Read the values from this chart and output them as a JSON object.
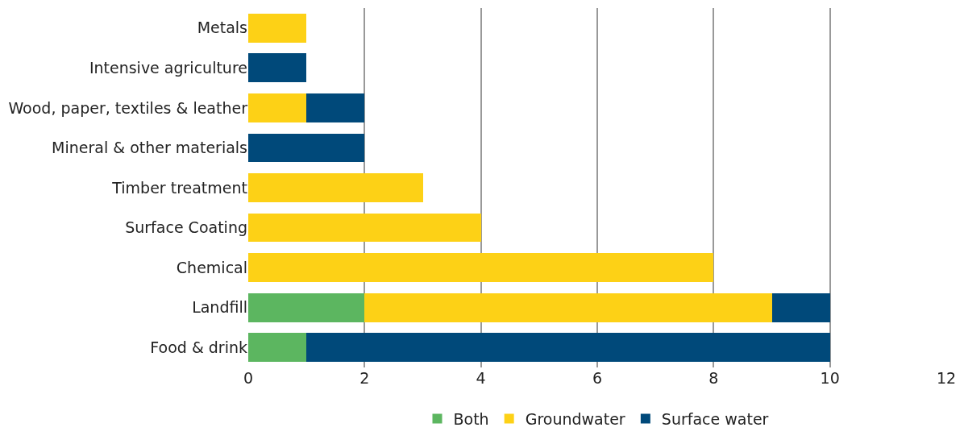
{
  "chart_data": {
    "type": "bar",
    "orientation": "horizontal",
    "stacked": true,
    "categories": [
      "Metals",
      "Intensive agriculture",
      "Wood, paper, textiles & leather",
      "Mineral & other materials",
      "Timber treatment",
      "Surface Coating",
      "Chemical",
      "Landfill",
      "Food & drink"
    ],
    "series": [
      {
        "name": "Both",
        "color": "#5cb660",
        "values": [
          0,
          0,
          0,
          0,
          0,
          0,
          0,
          2,
          1
        ]
      },
      {
        "name": "Groundwater",
        "color": "#fdd116",
        "values": [
          1,
          0,
          1,
          0,
          3,
          4,
          8,
          7,
          0
        ]
      },
      {
        "name": "Surface water",
        "color": "#00497a",
        "values": [
          0,
          1,
          1,
          2,
          0,
          0,
          0,
          1,
          9
        ]
      }
    ],
    "xlim": [
      0,
      12
    ],
    "xticks": [
      0,
      2,
      4,
      6,
      8,
      10,
      12
    ],
    "grid": "x",
    "legend": "bottom"
  }
}
